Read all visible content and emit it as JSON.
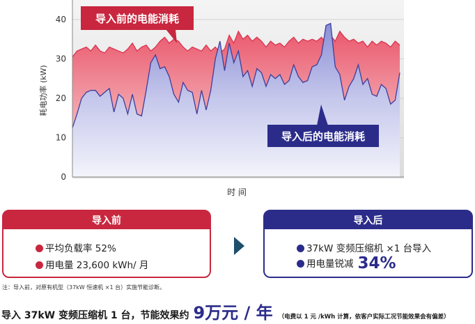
{
  "chart_data": {
    "type": "area",
    "ylabel": "耗电功率 (kW)",
    "xlabel": "时 间",
    "ylim": [
      0,
      45
    ],
    "yticks": [
      0,
      10,
      20,
      30,
      40
    ],
    "grid": true,
    "series": [
      {
        "name": "导入前的电能消耗",
        "color": "#d9344f",
        "values": [
          30.5,
          32.0,
          32.5,
          33.0,
          32.0,
          33.5,
          32.0,
          31.5,
          33.0,
          32.5,
          32.0,
          31.5,
          32.5,
          34.0,
          32.0,
          33.0,
          33.5,
          32.0,
          33.0,
          34.5,
          35.5,
          34.0,
          35.0,
          34.5,
          33.0,
          32.0,
          33.0,
          32.5,
          32.0,
          33.5,
          32.0,
          33.0,
          31.5,
          32.5,
          36.0,
          34.0,
          37.0,
          35.0,
          36.0,
          34.5,
          35.5,
          34.5,
          33.0,
          34.5,
          33.5,
          34.0,
          33.0,
          34.5,
          35.5,
          34.0,
          35.0,
          34.5,
          35.0,
          34.5,
          35.5,
          34.0,
          36.0,
          34.5,
          37.0,
          35.5,
          34.5,
          35.0,
          34.0,
          34.5,
          33.0,
          34.5,
          33.5,
          34.5,
          34.0,
          33.0,
          34.5,
          33.5
        ]
      },
      {
        "name": "导入后的电能消耗",
        "color": "#3b3e9c",
        "values": [
          12.5,
          16.0,
          20.0,
          21.5,
          22.0,
          22.0,
          20.5,
          21.5,
          22.5,
          16.5,
          21.0,
          20.0,
          16.0,
          21.0,
          16.0,
          15.5,
          22.0,
          29.0,
          31.0,
          27.5,
          28.0,
          25.5,
          21.0,
          19.0,
          24.0,
          22.0,
          21.5,
          16.0,
          22.0,
          17.0,
          22.0,
          30.0,
          34.5,
          27.0,
          34.0,
          29.0,
          32.0,
          25.5,
          27.0,
          23.0,
          27.5,
          26.5,
          23.0,
          26.0,
          25.0,
          26.0,
          23.5,
          24.5,
          28.5,
          25.5,
          24.0,
          24.5,
          28.0,
          28.5,
          31.0,
          38.5,
          39.0,
          28.0,
          26.0,
          19.5,
          23.0,
          25.0,
          28.5,
          23.5,
          25.0,
          21.0,
          20.5,
          23.5,
          22.5,
          18.5,
          19.5,
          26.5
        ]
      }
    ]
  },
  "callouts": {
    "before": "导入前的电能消耗",
    "after": "导入后的电能消耗"
  },
  "card_before": {
    "title": "导入前",
    "line1": "平均负载率 52%",
    "line2": "用电量 23,600 kWh/ 月"
  },
  "card_after": {
    "title": "导入后",
    "line1": "37kW 变频压缩机 ×1 台导入",
    "line2_label": "用电量锐减",
    "line2_value": "34%"
  },
  "note": "注：导入前，对原有机型（37kW 恒速机 ×1 台）实施节能诊断。",
  "footer": {
    "main": "导入 37kW 变频压缩机 1 台，节能效果约",
    "highlight": "9万元 / 年",
    "small": "（电费以 1 元 /kWh 计算，依客户实际工况节能效果会有偏差）"
  },
  "colors": {
    "before_accent": "#c8273f",
    "after_accent": "#2b2c8a"
  }
}
